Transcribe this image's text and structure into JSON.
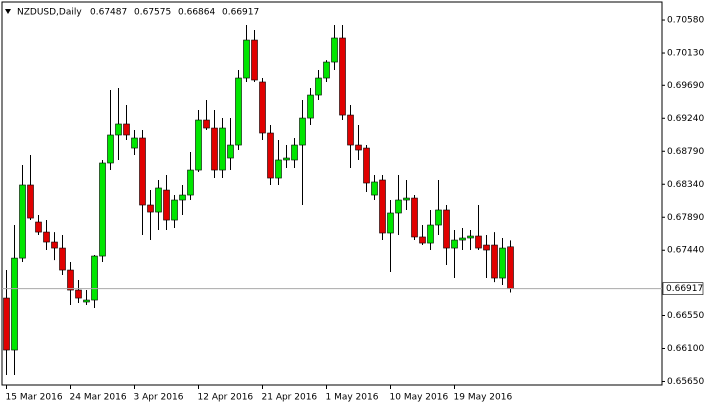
{
  "chart_data": {
    "type": "candlestick",
    "title": "NZDUSD,Daily",
    "categories": [
      "15 Mar 2016",
      null,
      null,
      null,
      null,
      null,
      null,
      null,
      "24 Mar 2016",
      null,
      null,
      null,
      null,
      null,
      null,
      null,
      "3 Apr 2016",
      null,
      null,
      null,
      null,
      null,
      null,
      null,
      "12 Apr 2016",
      null,
      null,
      null,
      null,
      null,
      null,
      null,
      "21 Apr 2016",
      null,
      null,
      null,
      null,
      null,
      null,
      null,
      "1 May 2016",
      null,
      null,
      null,
      null,
      null,
      null,
      null,
      "10 May 2016",
      null,
      null,
      null,
      null,
      null,
      null,
      null,
      "19 May 2016",
      null,
      null,
      null,
      null,
      null,
      null,
      null
    ],
    "open": [
      0.66788,
      0.66079,
      0.67333,
      0.6833,
      0.67825,
      0.67688,
      0.67552,
      0.6747,
      0.6717,
      0.66897,
      0.66734,
      0.66761,
      0.67361,
      0.6863,
      0.69012,
      0.69162,
      0.68834,
      0.68971,
      0.68057,
      0.67961,
      0.68261,
      0.67852,
      0.68125,
      0.68193,
      0.68534,
      0.69216,
      0.69107,
      0.68534,
      0.68698,
      0.68875,
      0.69789,
      0.70307,
      0.69735,
      0.69039,
      0.68425,
      0.68671,
      0.68671,
      0.68875,
      0.69243,
      0.69557,
      0.69789,
      0.70007,
      0.70335,
      0.69284,
      0.68875,
      0.68834,
      0.68193,
      0.68398,
      0.67675,
      0.67948,
      0.68125,
      0.68152,
      0.67621,
      0.67538,
      0.67784,
      0.67989,
      0.6747,
      0.67579,
      0.67607,
      0.67634,
      0.67511,
      0.67511,
      0.67061,
      0.67487
    ],
    "high": [
      0.6717,
      0.67784,
      0.68602,
      0.68739,
      0.6792,
      0.67852,
      0.67688,
      0.67648,
      0.67279,
      0.67034,
      0.66897,
      0.67375,
      0.68671,
      0.69625,
      0.69653,
      0.69421,
      0.6908,
      0.6908,
      0.68261,
      0.68398,
      0.68466,
      0.68193,
      0.6833,
      0.6878,
      0.69353,
      0.69489,
      0.69353,
      0.69243,
      0.69243,
      0.69898,
      0.70512,
      0.70444,
      0.69789,
      0.69148,
      0.68943,
      0.68875,
      0.68971,
      0.69489,
      0.69653,
      0.69898,
      0.70034,
      0.70512,
      0.70512,
      0.69421,
      0.69148,
      0.68875,
      0.68466,
      0.68466,
      0.68125,
      0.68466,
      0.68398,
      0.68193,
      0.67784,
      0.67989,
      0.68398,
      0.68057,
      0.67716,
      0.67743,
      0.67716,
      0.68057,
      0.67648,
      0.67688,
      0.67607,
      0.67575
    ],
    "low": [
      0.65738,
      0.65738,
      0.67279,
      0.67852,
      0.67648,
      0.67443,
      0.67306,
      0.67102,
      0.66693,
      0.6672,
      0.66693,
      0.66652,
      0.67279,
      0.68534,
      0.68671,
      0.68943,
      0.68739,
      0.67648,
      0.67579,
      0.67716,
      0.67716,
      0.67743,
      0.6792,
      0.68125,
      0.68507,
      0.6908,
      0.68425,
      0.68425,
      0.68534,
      0.68807,
      0.69735,
      0.69735,
      0.68943,
      0.6833,
      0.6833,
      0.68561,
      0.68561,
      0.68057,
      0.69148,
      0.69489,
      0.69735,
      0.69898,
      0.69216,
      0.68561,
      0.68671,
      0.68234,
      0.68125,
      0.67579,
      0.67143,
      0.67648,
      0.67989,
      0.67579,
      0.67511,
      0.67443,
      0.67648,
      0.67238,
      0.67061,
      0.67443,
      0.67443,
      0.67443,
      0.67061,
      0.67006,
      0.66966,
      0.66864
    ],
    "close": [
      0.66079,
      0.67333,
      0.6833,
      0.67879,
      0.67688,
      0.67552,
      0.6747,
      0.6717,
      0.66897,
      0.66788,
      0.66761,
      0.67361,
      0.6863,
      0.69012,
      0.69162,
      0.69012,
      0.68971,
      0.68057,
      0.67961,
      0.68289,
      0.67852,
      0.68125,
      0.68193,
      0.68534,
      0.69216,
      0.69107,
      0.68534,
      0.69107,
      0.68875,
      0.69789,
      0.70307,
      0.69762,
      0.69039,
      0.68425,
      0.68671,
      0.68698,
      0.68875,
      0.69243,
      0.69557,
      0.69789,
      0.70007,
      0.70335,
      0.69284,
      0.68875,
      0.68807,
      0.68357,
      0.68371,
      0.67675,
      0.67948,
      0.68125,
      0.68152,
      0.67621,
      0.67538,
      0.67784,
      0.67989,
      0.6747,
      0.67579,
      0.67607,
      0.67634,
      0.6747,
      0.67443,
      0.67061,
      0.6747,
      0.66917
    ],
    "up_color": "#00e600",
    "down_color": "#e00000",
    "ylim": [
      0.65602,
      0.70826
    ],
    "yticks": [
      {
        "value": 0.6565,
        "label": "0.65650"
      },
      {
        "value": 0.661,
        "label": "0.66100"
      },
      {
        "value": 0.6655,
        "label": "0.66550"
      },
      {
        "value": 0.6744,
        "label": "0.67440"
      },
      {
        "value": 0.6789,
        "label": "0.67890"
      },
      {
        "value": 0.6834,
        "label": "0.68340"
      },
      {
        "value": 0.6879,
        "label": "0.68790"
      },
      {
        "value": 0.6924,
        "label": "0.69240"
      },
      {
        "value": 0.6969,
        "label": "0.69690"
      },
      {
        "value": 0.7013,
        "label": "0.70130"
      },
      {
        "value": 0.7058,
        "label": "0.70580"
      }
    ],
    "grid": false
  }
}
